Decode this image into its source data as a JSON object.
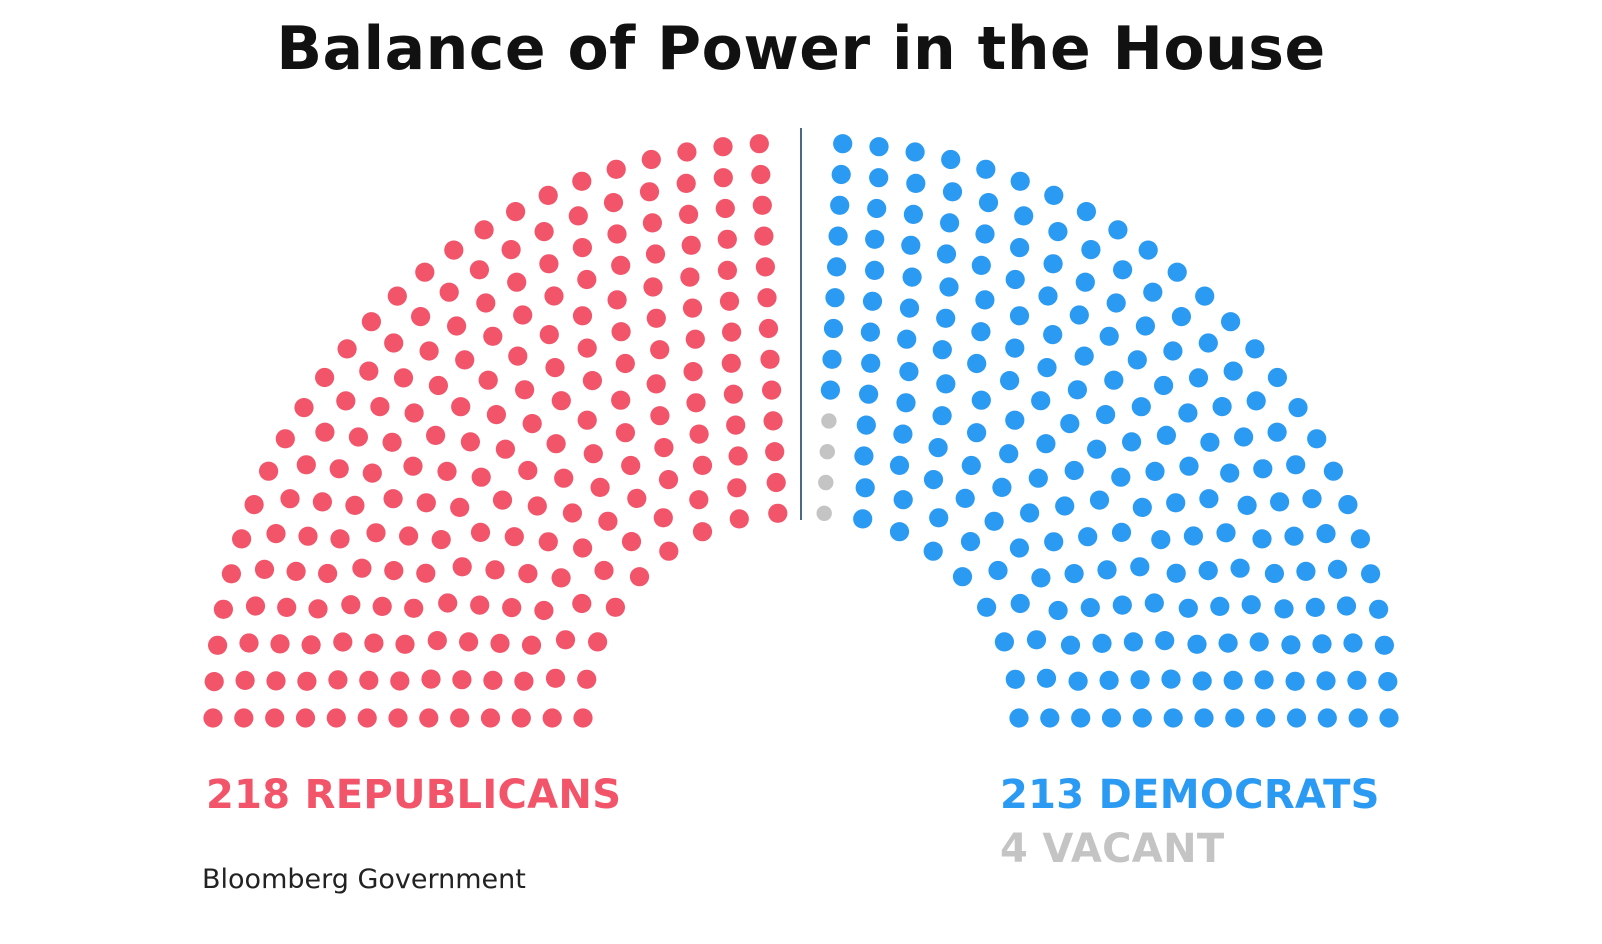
{
  "chart_data": {
    "type": "parliament",
    "title": "Balance of Power in the House",
    "total_seats": 435,
    "groups": [
      {
        "name": "REPUBLICANS",
        "seats": 218,
        "color": "#f2546a",
        "side": "left"
      },
      {
        "name": "DEMOCRATS",
        "seats": 213,
        "color": "#2b9af3",
        "side": "right"
      },
      {
        "name": "VACANT",
        "seats": 4,
        "color": "#c4c4c4",
        "side": "right"
      }
    ],
    "labels": {
      "republicans": "218 REPUBLICANS",
      "democrats": "213 DEMOCRATS",
      "vacant": "4 VACANT"
    },
    "divider_color": "#4a6a80"
  },
  "source": "Bloomberg Government"
}
